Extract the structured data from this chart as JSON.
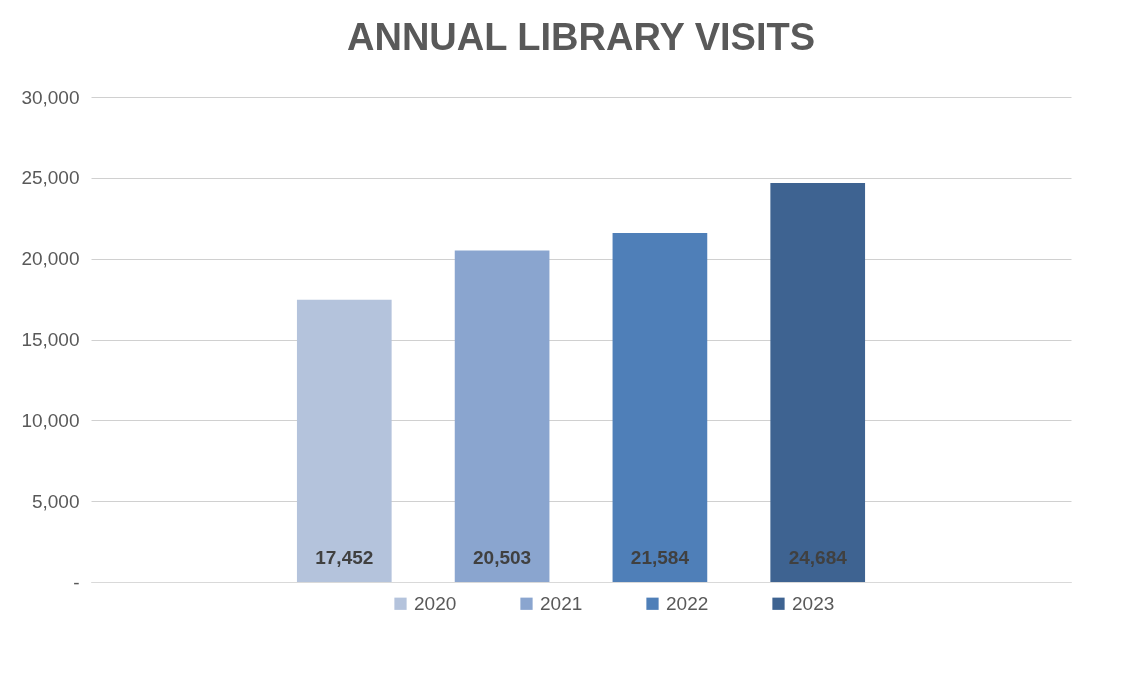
{
  "chart_data": {
    "type": "bar",
    "title": "ANNUAL LIBRARY VISITS",
    "categories": [
      null
    ],
    "series": [
      {
        "name": "2020",
        "color": "#b4c3dc",
        "values": [
          17452
        ],
        "value_labels": [
          "17,452"
        ]
      },
      {
        "name": "2021",
        "color": "#8aa5cf",
        "values": [
          20503
        ],
        "value_labels": [
          "20,503"
        ]
      },
      {
        "name": "2022",
        "color": "#4f7fb8",
        "values": [
          21584
        ],
        "value_labels": [
          "21,584"
        ]
      },
      {
        "name": "2023",
        "color": "#3e6391",
        "values": [
          24684
        ],
        "value_labels": [
          "24,684"
        ]
      }
    ],
    "ylim": [
      0,
      30000
    ],
    "yticks": [
      {
        "value": 0,
        "label": "-"
      },
      {
        "value": 5000,
        "label": "5,000"
      },
      {
        "value": 10000,
        "label": "10,000"
      },
      {
        "value": 15000,
        "label": "15,000"
      },
      {
        "value": 20000,
        "label": "20,000"
      },
      {
        "value": 25000,
        "label": "25,000"
      },
      {
        "value": 30000,
        "label": "30,000"
      }
    ],
    "grid": "y",
    "legend": "bottom",
    "tick_labels": "y"
  }
}
